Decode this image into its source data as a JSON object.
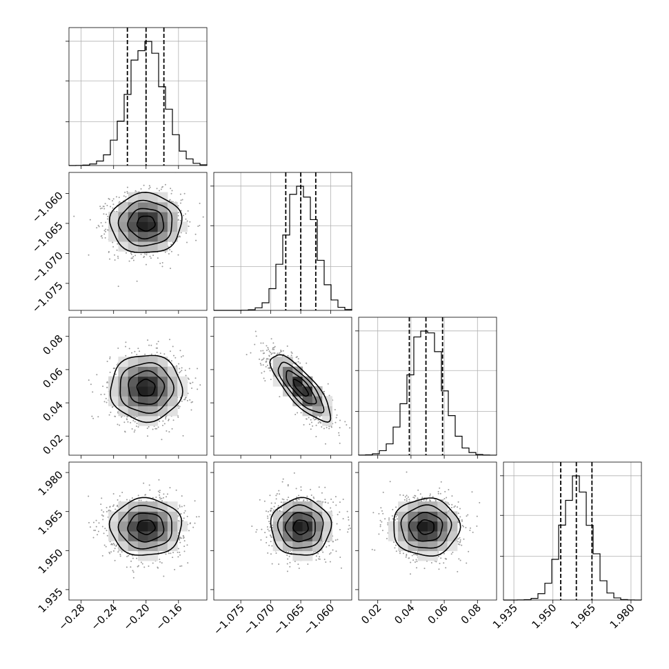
{
  "chart_data": {
    "type": "corner",
    "grid": true,
    "quantile_lines": "dashed",
    "parameters": [
      {
        "index": 0,
        "range": [
          -0.295,
          -0.125
        ],
        "ticks": [
          -0.28,
          -0.24,
          -0.2,
          -0.16
        ],
        "tick_labels": [
          "−0.28",
          "−0.24",
          "−0.20",
          "−0.16"
        ],
        "mean": -0.2,
        "sd": 0.022,
        "quantiles": [
          -0.223,
          -0.2,
          -0.178
        ]
      },
      {
        "index": 1,
        "range": [
          -1.0795,
          -1.0565
        ],
        "ticks": [
          -1.075,
          -1.07,
          -1.065,
          -1.06
        ],
        "tick_labels": [
          "−1.075",
          "−1.070",
          "−1.065",
          "−1.060"
        ],
        "mean": -1.065,
        "sd": 0.0025,
        "quantiles": [
          -1.0675,
          -1.065,
          -1.0625
        ]
      },
      {
        "index": 2,
        "range": [
          0.0085,
          0.0915
        ],
        "ticks": [
          0.02,
          0.04,
          0.06,
          0.08
        ],
        "tick_labels": [
          "0.02",
          "0.04",
          "0.06",
          "0.08"
        ],
        "mean": 0.049,
        "sd": 0.01,
        "quantiles": [
          0.039,
          0.049,
          0.059
        ]
      },
      {
        "index": 3,
        "range": [
          1.931,
          1.984
        ],
        "ticks": [
          1.935,
          1.95,
          1.965,
          1.98
        ],
        "tick_labels": [
          "1.935",
          "1.950",
          "1.965",
          "1.980"
        ],
        "mean": 1.959,
        "sd": 0.0055,
        "quantiles": [
          1.953,
          1.959,
          1.965
        ]
      }
    ],
    "correlations": [
      {
        "pair": [
          0,
          1
        ],
        "rho": 0.0
      },
      {
        "pair": [
          0,
          2
        ],
        "rho": 0.0
      },
      {
        "pair": [
          1,
          2
        ],
        "rho": -0.8
      },
      {
        "pair": [
          0,
          3
        ],
        "rho": 0.0
      },
      {
        "pair": [
          1,
          3
        ],
        "rho": 0.0
      },
      {
        "pair": [
          2,
          3
        ],
        "rho": 0.0
      }
    ],
    "contour_levels_sigma": [
      0.5,
      1.0,
      1.5,
      2.0
    ]
  }
}
